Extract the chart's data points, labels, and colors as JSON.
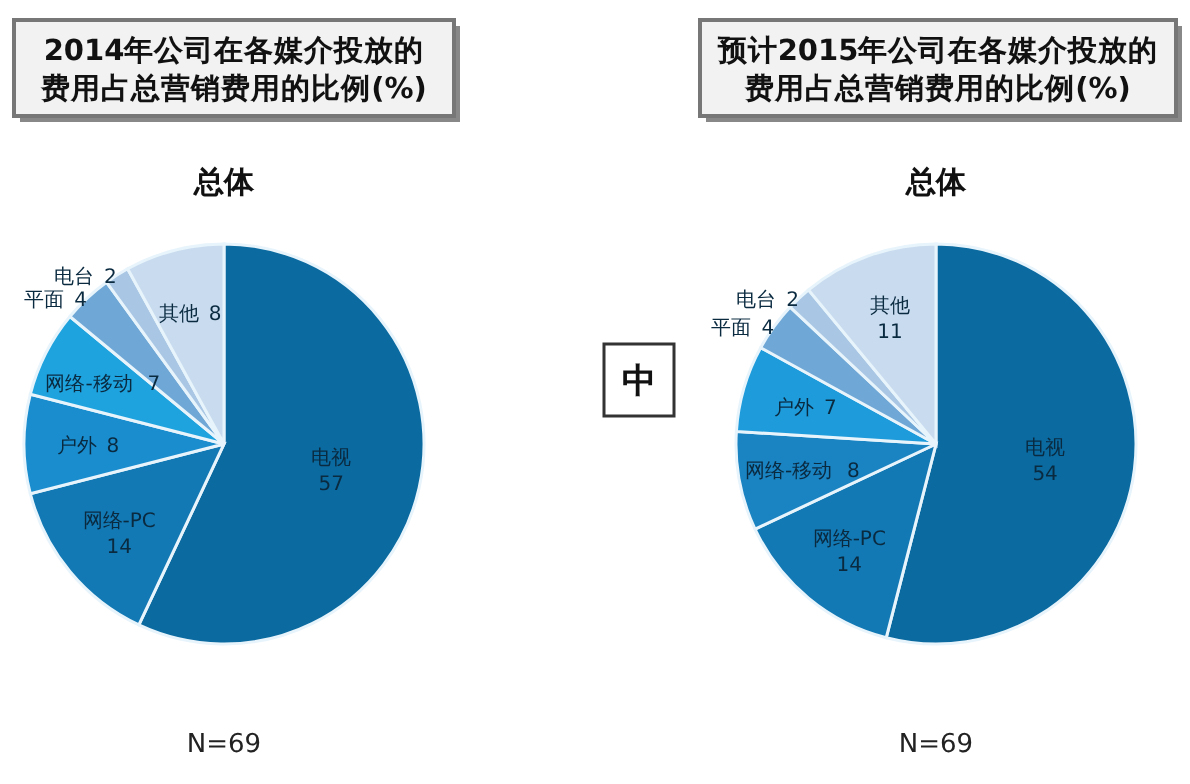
{
  "chart_data": [
    {
      "type": "pie",
      "title": "2014年公司在各媒介投放的费用占总营销费用的比例(%)",
      "subtitle": "总体",
      "categories": [
        "电视",
        "网络-PC",
        "户外",
        "网络-移动",
        "平面",
        "电台",
        "其他"
      ],
      "values": [
        57,
        14,
        8,
        7,
        4,
        2,
        8
      ],
      "colors": [
        "#0b6aa0",
        "#1379b4",
        "#1a8dcf",
        "#1ea3df",
        "#6fa8d6",
        "#a9c7e4",
        "#c9dcef"
      ],
      "data_labels": true,
      "annotations": [
        "N=69"
      ]
    },
    {
      "type": "pie",
      "title": "预计2015年公司在各媒介投放的费用占总营销费用的比例(%)",
      "subtitle": "总体",
      "categories": [
        "电视",
        "网络-PC",
        "网络-移动",
        "户外",
        "平面",
        "电台",
        "其他"
      ],
      "values": [
        54,
        14,
        8,
        7,
        4,
        2,
        11
      ],
      "colors": [
        "#0b6aa0",
        "#1379b4",
        "#1a83c2",
        "#1e9bdb",
        "#6fa8d6",
        "#a9c7e4",
        "#c9dcef"
      ],
      "data_labels": true,
      "annotations": [
        "N=69",
        "中"
      ]
    }
  ]
}
